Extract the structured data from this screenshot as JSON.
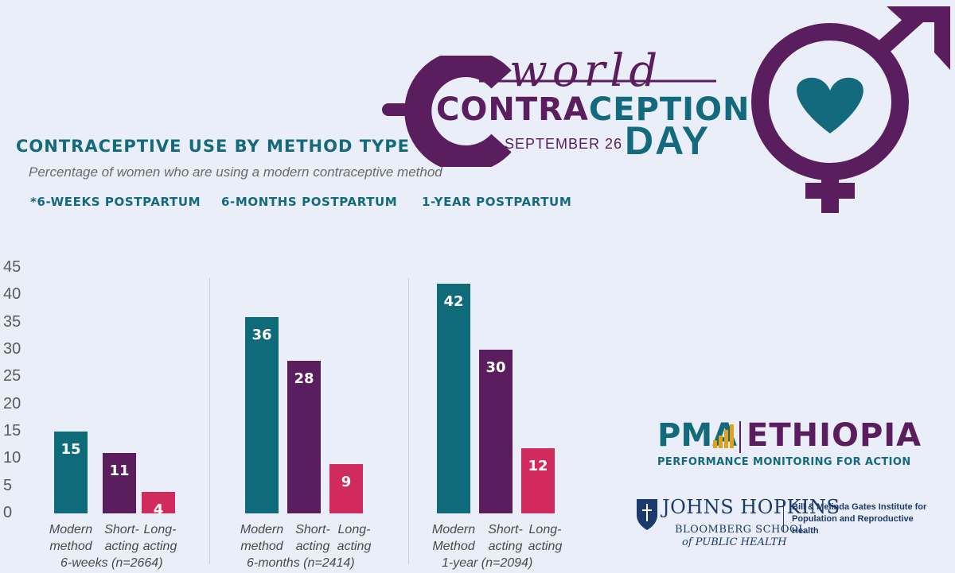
{
  "header": {
    "title": "CONTRACEPTIVE USE BY METHOD TYPE",
    "subtitle": "Percentage of women who are using a modern contraceptive method",
    "periods": [
      "*6-WEEKS POSTPARTUM",
      "6-MONTHS POSTPARTUM",
      "1-YEAR POSTPARTUM"
    ]
  },
  "campaign": {
    "world": "world",
    "contra_part1": "CONTRA",
    "contra_part2": "CEPTION",
    "day": "DAY",
    "date": "SEPTEMBER 26"
  },
  "colors": {
    "modern": "#0f6a7a",
    "short": "#5a1d5e",
    "long": "#d12b5e",
    "background": "#e9eef8"
  },
  "chart_data": {
    "type": "bar",
    "ylim": [
      0,
      45
    ],
    "yticks": [
      0,
      5,
      10,
      15,
      20,
      25,
      30,
      35,
      40,
      45
    ],
    "groups": [
      {
        "label": "6-weeks (n=2664)",
        "categories": [
          "Modern method",
          "Short-acting",
          "Long-acting"
        ],
        "values": [
          15,
          11,
          4
        ]
      },
      {
        "label": "6-months (n=2414)",
        "categories": [
          "Modern method",
          "Short-acting",
          "Long-acting"
        ],
        "values": [
          36,
          28,
          9
        ]
      },
      {
        "label": "1-year (n=2094)",
        "categories": [
          "Modern Method",
          "Short-acting",
          "Long-acting"
        ],
        "values": [
          42,
          30,
          12
        ]
      }
    ]
  },
  "branding": {
    "pma": "PMA",
    "country": "ETHIOPIA",
    "tagline": "PERFORMANCE MONITORING FOR ACTION",
    "jh_name": "JOHNS HOPKINS",
    "jh_school": "BLOOMBERG SCHOOL",
    "jh_school2": "of PUBLIC HEALTH",
    "gates": "Bill & Melinda Gates Institute for Population and Reproductive Health"
  }
}
